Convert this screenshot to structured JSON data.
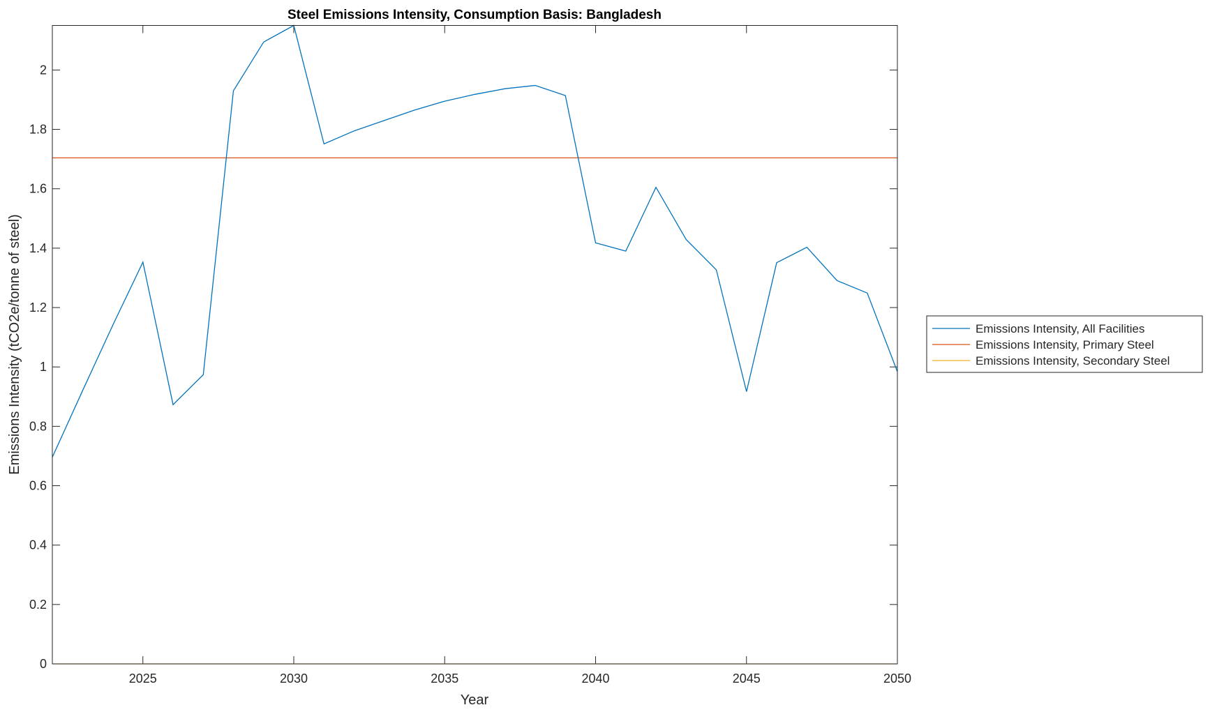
{
  "chart_data": {
    "type": "line",
    "title": "Steel Emissions Intensity, Consumption Basis: Bangladesh",
    "xlabel": "Year",
    "ylabel": "Emissions Intensity (tCO2e/tonne of steel)",
    "xlim": [
      2022,
      2050
    ],
    "ylim": [
      0,
      2.15
    ],
    "xticks": [
      2025,
      2030,
      2035,
      2040,
      2045,
      2050
    ],
    "yticks": [
      0,
      0.2,
      0.4,
      0.6,
      0.8,
      1,
      1.2,
      1.4,
      1.6,
      1.8,
      2
    ],
    "ytick_labels": [
      "0",
      "0.2",
      "0.4",
      "0.6",
      "0.8",
      "1",
      "1.2",
      "1.4",
      "1.6",
      "1.8",
      "2"
    ],
    "grid": false,
    "legend_position": "outside-right",
    "x": [
      2022,
      2023,
      2024,
      2025,
      2026,
      2027,
      2028,
      2029,
      2030,
      2031,
      2032,
      2033,
      2034,
      2035,
      2036,
      2037,
      2038,
      2039,
      2040,
      2041,
      2042,
      2043,
      2044,
      2045,
      2046,
      2047,
      2048,
      2049,
      2050
    ],
    "series": [
      {
        "name": "Emissions Intensity, All Facilities",
        "color": "#0072BD",
        "values": [
          0.696,
          0.92,
          1.14,
          1.353,
          0.873,
          0.974,
          1.93,
          2.094,
          2.15,
          1.751,
          1.795,
          1.83,
          1.865,
          1.895,
          1.918,
          1.937,
          1.948,
          1.914,
          1.418,
          1.39,
          1.605,
          1.429,
          1.327,
          0.917,
          1.351,
          1.403,
          1.291,
          1.249,
          0.984
        ]
      },
      {
        "name": "Emissions Intensity, Primary Steel",
        "color": "#D95319",
        "values": [
          1.704,
          1.704,
          1.704,
          1.704,
          1.704,
          1.704,
          1.704,
          1.704,
          1.704,
          1.704,
          1.704,
          1.704,
          1.704,
          1.704,
          1.704,
          1.704,
          1.704,
          1.704,
          1.704,
          1.704,
          1.704,
          1.704,
          1.704,
          1.704,
          1.704,
          1.704,
          1.704,
          1.704,
          1.704
        ]
      },
      {
        "name": "Emissions Intensity, Secondary Steel",
        "color": "#EDB120",
        "values": [
          0,
          0,
          0,
          0,
          0,
          0,
          0,
          0,
          0,
          0,
          0,
          0,
          0,
          0,
          0,
          0,
          0,
          0,
          0,
          0,
          0,
          0,
          0,
          0,
          0,
          0,
          0,
          0,
          0
        ]
      }
    ]
  }
}
